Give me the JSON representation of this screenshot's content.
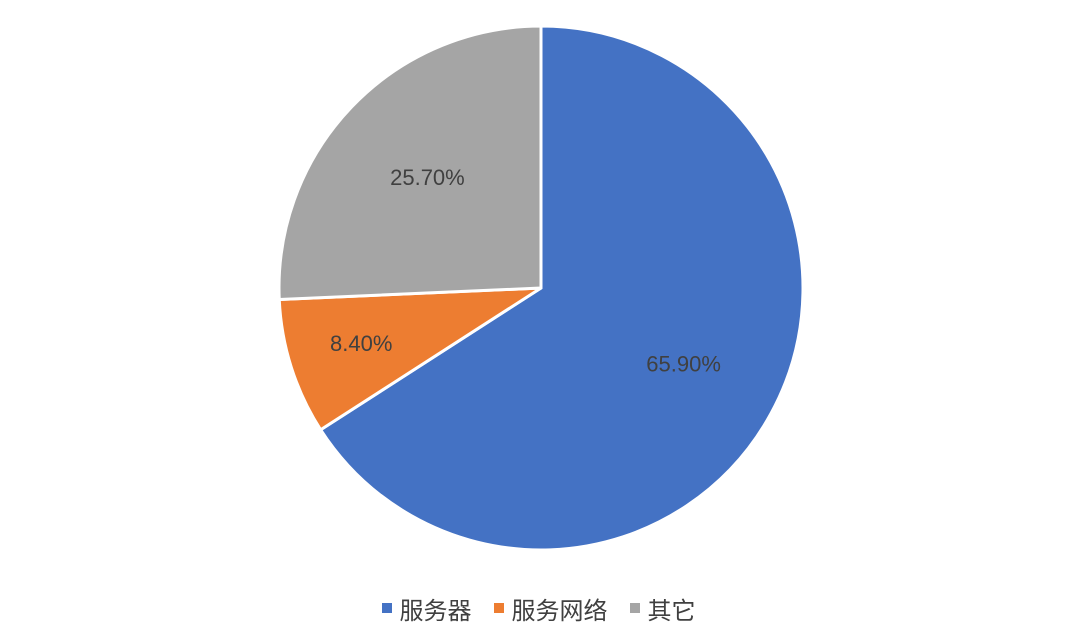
{
  "chart_data": {
    "type": "pie",
    "title": "",
    "categories": [
      "服务器",
      "服务网络",
      "其它"
    ],
    "values": [
      65.9,
      8.4,
      25.7
    ],
    "labels": [
      "65.90%",
      "8.40%",
      "25.70%"
    ],
    "colors": [
      "#4472C4",
      "#ED7D31",
      "#A5A5A5"
    ],
    "legend_position": "bottom"
  },
  "legend": {
    "items": [
      {
        "label": "服务器",
        "color": "#4472C4"
      },
      {
        "label": "服务网络",
        "color": "#ED7D31"
      },
      {
        "label": "其它",
        "color": "#A5A5A5"
      }
    ]
  }
}
